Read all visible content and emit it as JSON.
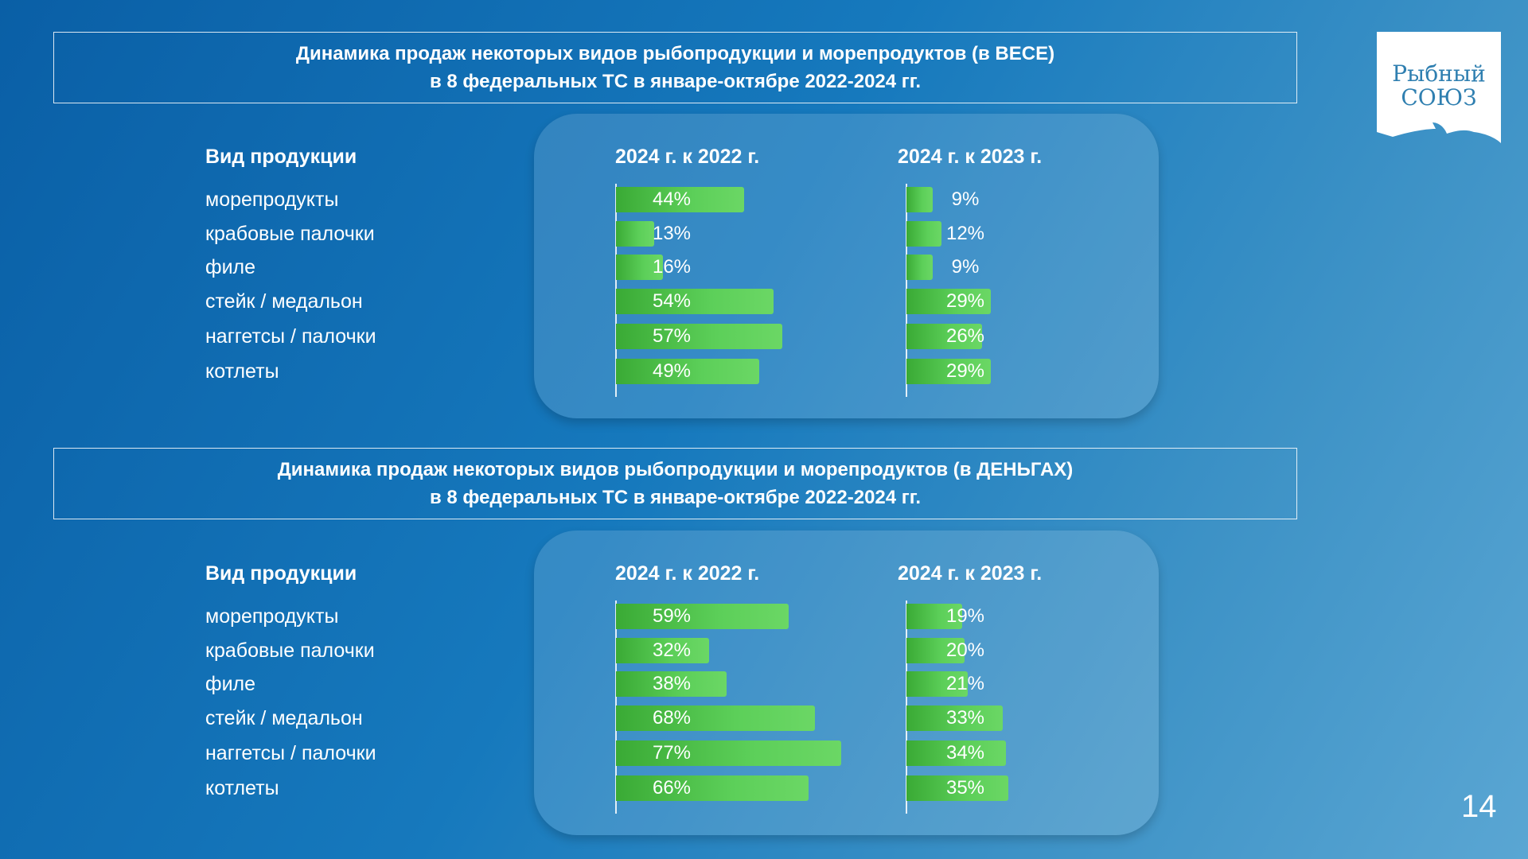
{
  "logo": {
    "line1": "Рыбный",
    "line2": "СОЮЗ"
  },
  "page_number": "14",
  "colors": {
    "bar_start": "#3aaa35",
    "bar_end": "#6bd765",
    "background": "#1679bd"
  },
  "chart_data": [
    {
      "type": "bar",
      "orientation": "horizontal",
      "title_line1": "Динамика продаж некоторых видов рыбопродукции и морепродуктов (в ВЕСЕ)",
      "title_line2": "в 8 федеральных ТС в январе-октябре 2022-2024 гг.",
      "category_header": "Вид продукции",
      "categories": [
        "морепродукты",
        "крабовые палочки",
        "филе",
        "стейк / медальон",
        "наггетсы / палочки",
        "котлеты"
      ],
      "series": [
        {
          "name": "2024 г. к 2022 г.",
          "values": [
            44,
            13,
            16,
            54,
            57,
            49
          ],
          "labels": [
            "44%",
            "13%",
            "16%",
            "54%",
            "57%",
            "49%"
          ]
        },
        {
          "name": "2024 г. к 2023 г.",
          "values": [
            9,
            12,
            9,
            29,
            26,
            29
          ],
          "labels": [
            "9%",
            "12%",
            "9%",
            "29%",
            "26%",
            "29%"
          ]
        }
      ],
      "unit": "%"
    },
    {
      "type": "bar",
      "orientation": "horizontal",
      "title_line1": "Динамика продаж некоторых видов рыбопродукции и морепродуктов (в ДЕНЬГАХ)",
      "title_line2": "в 8 федеральных ТС в январе-октябре 2022-2024 гг.",
      "category_header": "Вид продукции",
      "categories": [
        "морепродукты",
        "крабовые палочки",
        "филе",
        "стейк / медальон",
        "наггетсы / палочки",
        "котлеты"
      ],
      "series": [
        {
          "name": "2024 г. к 2022 г.",
          "values": [
            59,
            32,
            38,
            68,
            77,
            66
          ],
          "labels": [
            "59%",
            "32%",
            "38%",
            "68%",
            "77%",
            "66%"
          ]
        },
        {
          "name": "2024 г. к 2023 г.",
          "values": [
            19,
            20,
            21,
            33,
            34,
            35
          ],
          "labels": [
            "19%",
            "20%",
            "21%",
            "33%",
            "34%",
            "35%"
          ]
        }
      ],
      "unit": "%"
    }
  ]
}
